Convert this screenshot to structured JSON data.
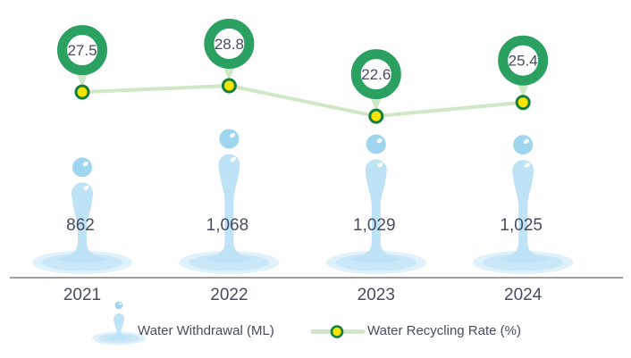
{
  "chart_data": {
    "type": "combo",
    "subtype": "pictograph-bar + line",
    "categories": [
      "2021",
      "2022",
      "2023",
      "2024"
    ],
    "series": [
      {
        "name": "Water Withdrawal (ML)",
        "type": "pictograph-bar",
        "marker": "water-drop",
        "values": [
          862,
          1068,
          1029,
          1025
        ],
        "labels": [
          "862",
          "1,068",
          "1,029",
          "1,025"
        ]
      },
      {
        "name": "Water Recycling Rate (%)",
        "type": "line",
        "marker": "ring-badge",
        "values": [
          27.5,
          28.8,
          22.6,
          25.4
        ],
        "labels": [
          "27.5",
          "28.8",
          "22.6",
          "25.4"
        ]
      }
    ],
    "title": "",
    "xlabel": "",
    "ylabel": "",
    "grid": false,
    "legend_position": "bottom",
    "value_labels_shown": true
  },
  "colors": {
    "ring": "#2aa061",
    "pointer": "#cfe8c8",
    "line": "#d2e7c6",
    "dot": "#f9e300",
    "dot_border": "#157f3d",
    "ball": "#a0d5f0",
    "column": "#bfe3f6",
    "splash_inner": "#c9e7f7",
    "splash_outer": "#dff1fb",
    "text": "#474d5e",
    "axis": "#7e7e7e"
  }
}
